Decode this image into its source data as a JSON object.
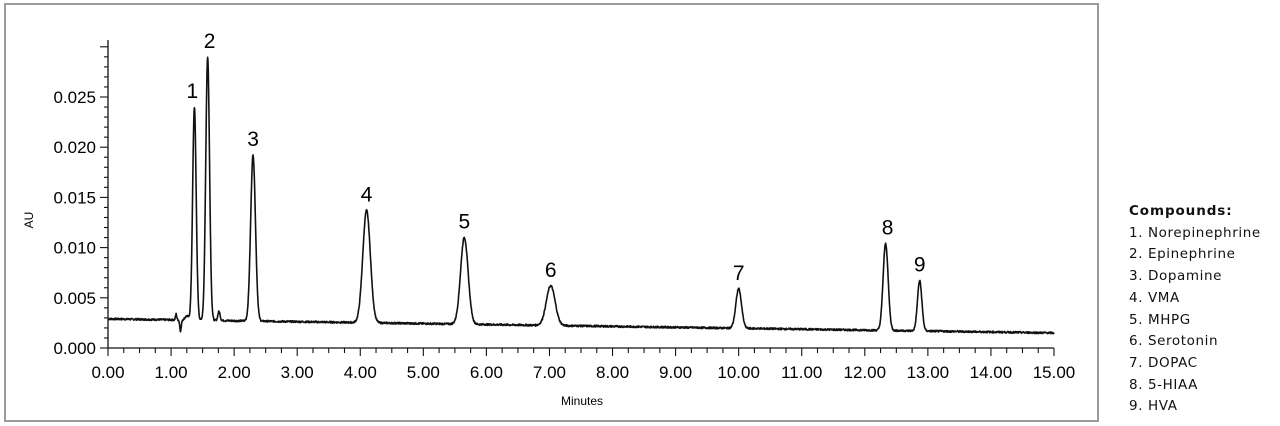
{
  "chart_data": {
    "type": "line",
    "title": "",
    "xlabel": "Minutes",
    "ylabel": "AU",
    "xlim": [
      0,
      15
    ],
    "ylim": [
      0,
      0.03
    ],
    "xticks": [
      "0.00",
      "1.00",
      "2.00",
      "3.00",
      "4.00",
      "5.00",
      "6.00",
      "7.00",
      "8.00",
      "9.00",
      "10.00",
      "11.00",
      "12.00",
      "13.00",
      "14.00",
      "15.00"
    ],
    "yticks": [
      "0.000",
      "0.005",
      "0.010",
      "0.015",
      "0.020",
      "0.025"
    ],
    "baseline": {
      "start": [
        0,
        0.0029
      ],
      "end": [
        15,
        0.0015
      ]
    },
    "peaks": [
      {
        "label": "1",
        "rt": 1.37,
        "height": 0.024,
        "width": 0.028
      },
      {
        "label": "2",
        "rt": 1.58,
        "height": 0.029,
        "width": 0.03
      },
      {
        "label": "3",
        "rt": 2.3,
        "height": 0.0192,
        "width": 0.038
      },
      {
        "label": "4",
        "rt": 4.1,
        "height": 0.0137,
        "width": 0.06
      },
      {
        "label": "5",
        "rt": 5.65,
        "height": 0.011,
        "width": 0.06
      },
      {
        "label": "6",
        "rt": 7.02,
        "height": 0.0062,
        "width": 0.07
      },
      {
        "label": "7",
        "rt": 10.0,
        "height": 0.0059,
        "width": 0.045
      },
      {
        "label": "8",
        "rt": 12.33,
        "height": 0.0104,
        "width": 0.04
      },
      {
        "label": "9",
        "rt": 12.87,
        "height": 0.0067,
        "width": 0.035
      }
    ],
    "grid": false,
    "legend": "right"
  },
  "legend": {
    "title": "Compounds:",
    "items": [
      "1. Norepinephrine",
      "2. Epinephrine",
      "3. Dopamine",
      "4. VMA",
      "5. MHPG",
      "6. Serotonin",
      "7. DOPAC",
      "8. 5-HIAA",
      "9. HVA"
    ]
  }
}
